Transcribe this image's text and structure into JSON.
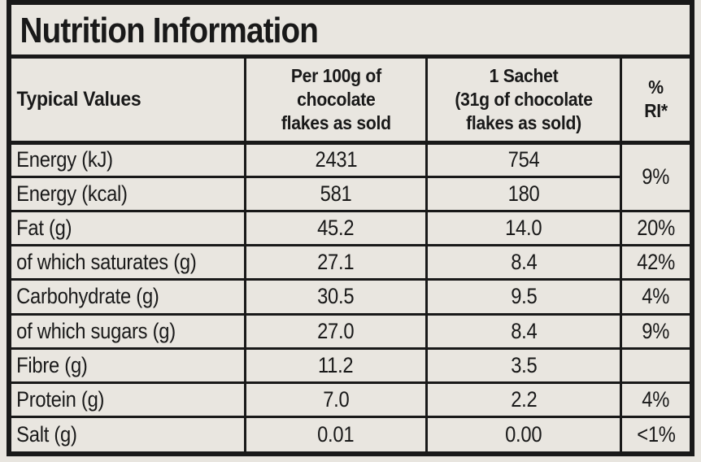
{
  "title": "Nutrition Information",
  "colors": {
    "paper": "#e9e6e0",
    "ink": "#191919"
  },
  "header": {
    "typical_values": "Typical Values",
    "per_100g": "Per 100g of\nchocolate\nflakes as sold",
    "sachet": "1 Sachet\n(31g of chocolate\nflakes as sold)",
    "ri": "%\nRI*"
  },
  "rows": [
    {
      "label": "Energy (kJ)",
      "per100": "2431",
      "sachet": "754",
      "ri": "9%"
    },
    {
      "label": "Energy (kcal)",
      "per100": "581",
      "sachet": "180",
      "ri": null
    },
    {
      "label": "Fat (g)",
      "per100": "45.2",
      "sachet": "14.0",
      "ri": "20%"
    },
    {
      "label": "of which saturates (g)",
      "per100": "27.1",
      "sachet": "8.4",
      "ri": "42%"
    },
    {
      "label": "Carbohydrate (g)",
      "per100": "30.5",
      "sachet": "9.5",
      "ri": "4%"
    },
    {
      "label": "of which sugars (g)",
      "per100": "27.0",
      "sachet": "8.4",
      "ri": "9%"
    },
    {
      "label": "Fibre (g)",
      "per100": "11.2",
      "sachet": "3.5",
      "ri": ""
    },
    {
      "label": "Protein (g)",
      "per100": "7.0",
      "sachet": "2.2",
      "ri": "4%"
    },
    {
      "label": "Salt (g)",
      "per100": "0.01",
      "sachet": "0.00",
      "ri": "<1%"
    }
  ]
}
